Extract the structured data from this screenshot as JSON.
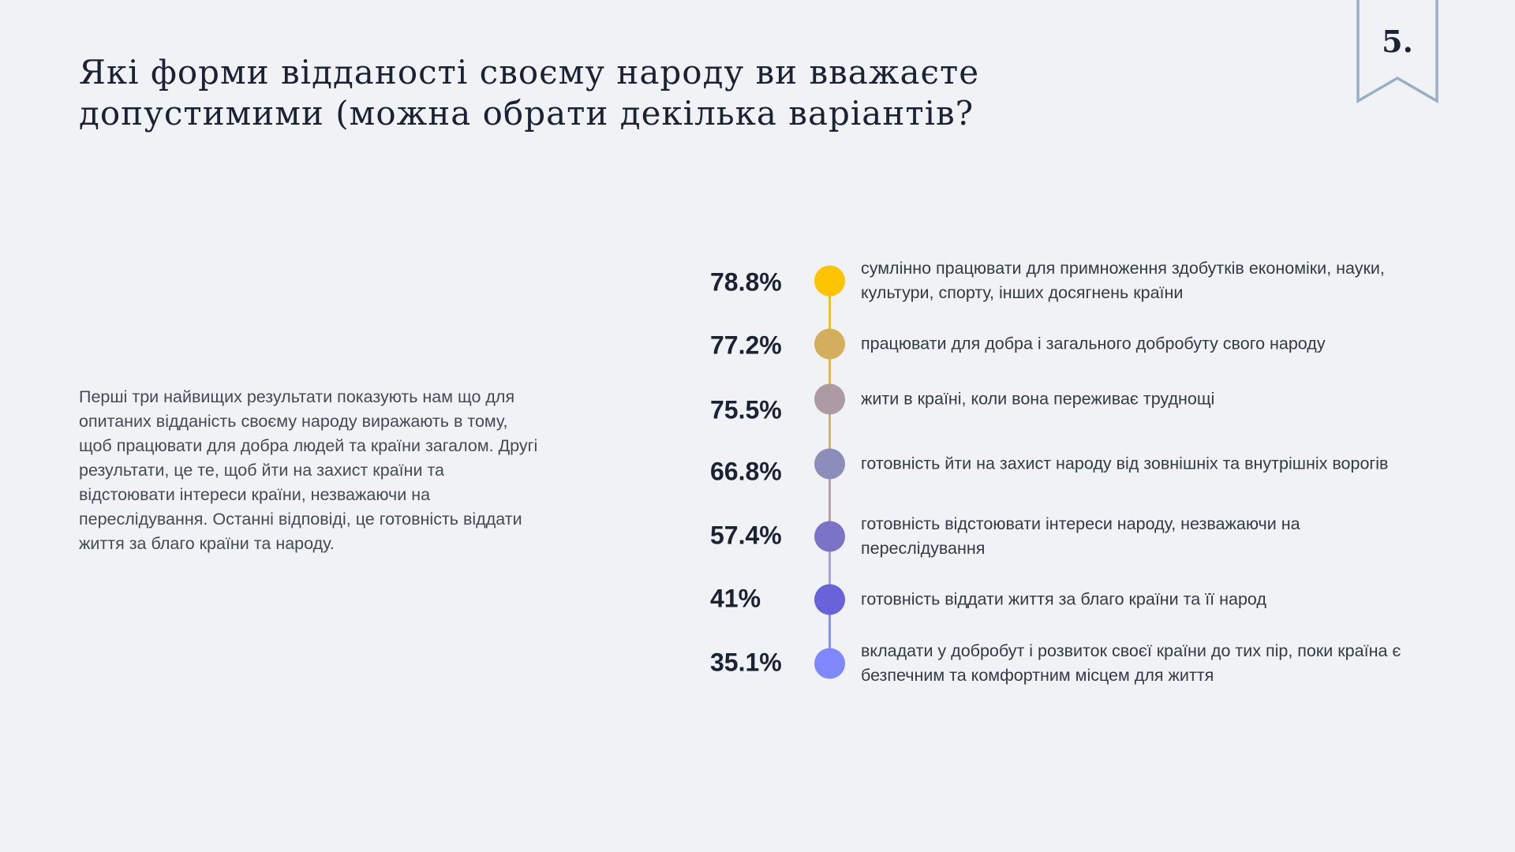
{
  "title": "Які форми відданості своєму народу ви вважаєте допустимими (можна обрати декілька варіантів?",
  "page_number": "5.",
  "summary": "Перші три найвищих результати показують нам що для опитаних відданість своєму народу виражають в тому, щоб працювати для добра людей та країни загалом. Другі результати, це те, щоб йти на захист країни та відстоювати інтереси країни, незважаючи на переслідування. Останні відповіді, це готовність віддати життя за благо країни та народу.",
  "items": [
    {
      "percent": "78.8%",
      "value": 78.8,
      "color": "#FFC400",
      "text": "сумлінно працювати для примноження здобутків економіки, науки, культури, спорту, інших досягнень країни"
    },
    {
      "percent": "77.2%",
      "value": 77.2,
      "color": "#D3AE5C",
      "text": "працювати для добра і загального добробуту свого народу"
    },
    {
      "percent": "75.5%",
      "value": 75.5,
      "color": "#AD9BA3",
      "text": "жити в країні, коли вона переживає труднощі"
    },
    {
      "percent": "66.8%",
      "value": 66.8,
      "color": "#8D8DBB",
      "text": "готовність йти на захист народу від зовнішніх та внутрішніх ворогів"
    },
    {
      "percent": "57.4%",
      "value": 57.4,
      "color": "#7B74C6",
      "text": "готовність відстоювати інтереси народу, незважаючи на переслідування"
    },
    {
      "percent": "41%",
      "value": 41,
      "color": "#6962D9",
      "text": "готовність віддати життя за благо країни та її народ"
    },
    {
      "percent": "35.1%",
      "value": 35.1,
      "color": "#8088FF",
      "text": "вкладати у добробут і розвиток своєї країни до тих пір, поки країна є безпечним та комфортним місцем для життя"
    }
  ]
}
